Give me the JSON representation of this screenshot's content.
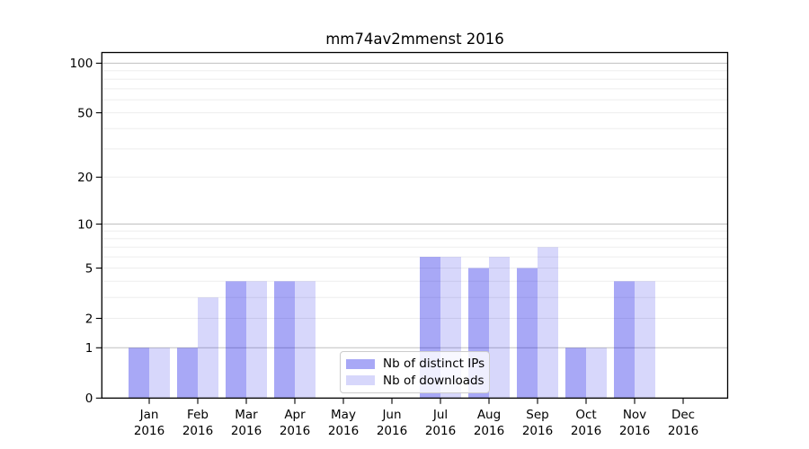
{
  "chart_data": {
    "type": "bar",
    "title": "mm74av2mmenst 2016",
    "year_label": "2016",
    "categories": [
      "Jan",
      "Feb",
      "Mar",
      "Apr",
      "May",
      "Jun",
      "Jul",
      "Aug",
      "Sep",
      "Oct",
      "Nov",
      "Dec"
    ],
    "series": [
      {
        "name": "Nb of distinct IPs",
        "color": "rgba(0,0,230,0.34)",
        "color_hex_on_white": "#a8a8f7",
        "values": [
          1,
          1,
          4,
          4,
          0,
          0,
          6,
          5,
          5,
          1,
          4,
          0
        ]
      },
      {
        "name": "Nb of downloads",
        "color": "rgba(0,0,230,0.155)",
        "color_hex_on_white": "#d8d8fb",
        "values": [
          1,
          3,
          4,
          4,
          0,
          0,
          6,
          6,
          7,
          1,
          4,
          0
        ]
      }
    ],
    "yscale": "log1p",
    "ylim": [
      0,
      116
    ],
    "y_ticks": [
      "0",
      "1",
      "2",
      "5",
      "10",
      "20",
      "50",
      "100"
    ],
    "y_major_gridlines": [
      1,
      10,
      100
    ],
    "y_minor_gridlines": [
      2,
      3,
      4,
      5,
      6,
      7,
      8,
      9,
      20,
      30,
      40,
      50,
      60,
      70,
      80,
      90
    ],
    "grid": "horizontal",
    "legend_position": "lower center",
    "xlabel": "",
    "ylabel": ""
  },
  "colors": {
    "background": "#ffffff",
    "axis": "#000000",
    "tick_label": "#000000",
    "grid_major": "#c0c0c0",
    "grid_minor": "#ededed",
    "legend_border": "#cccccc"
  }
}
